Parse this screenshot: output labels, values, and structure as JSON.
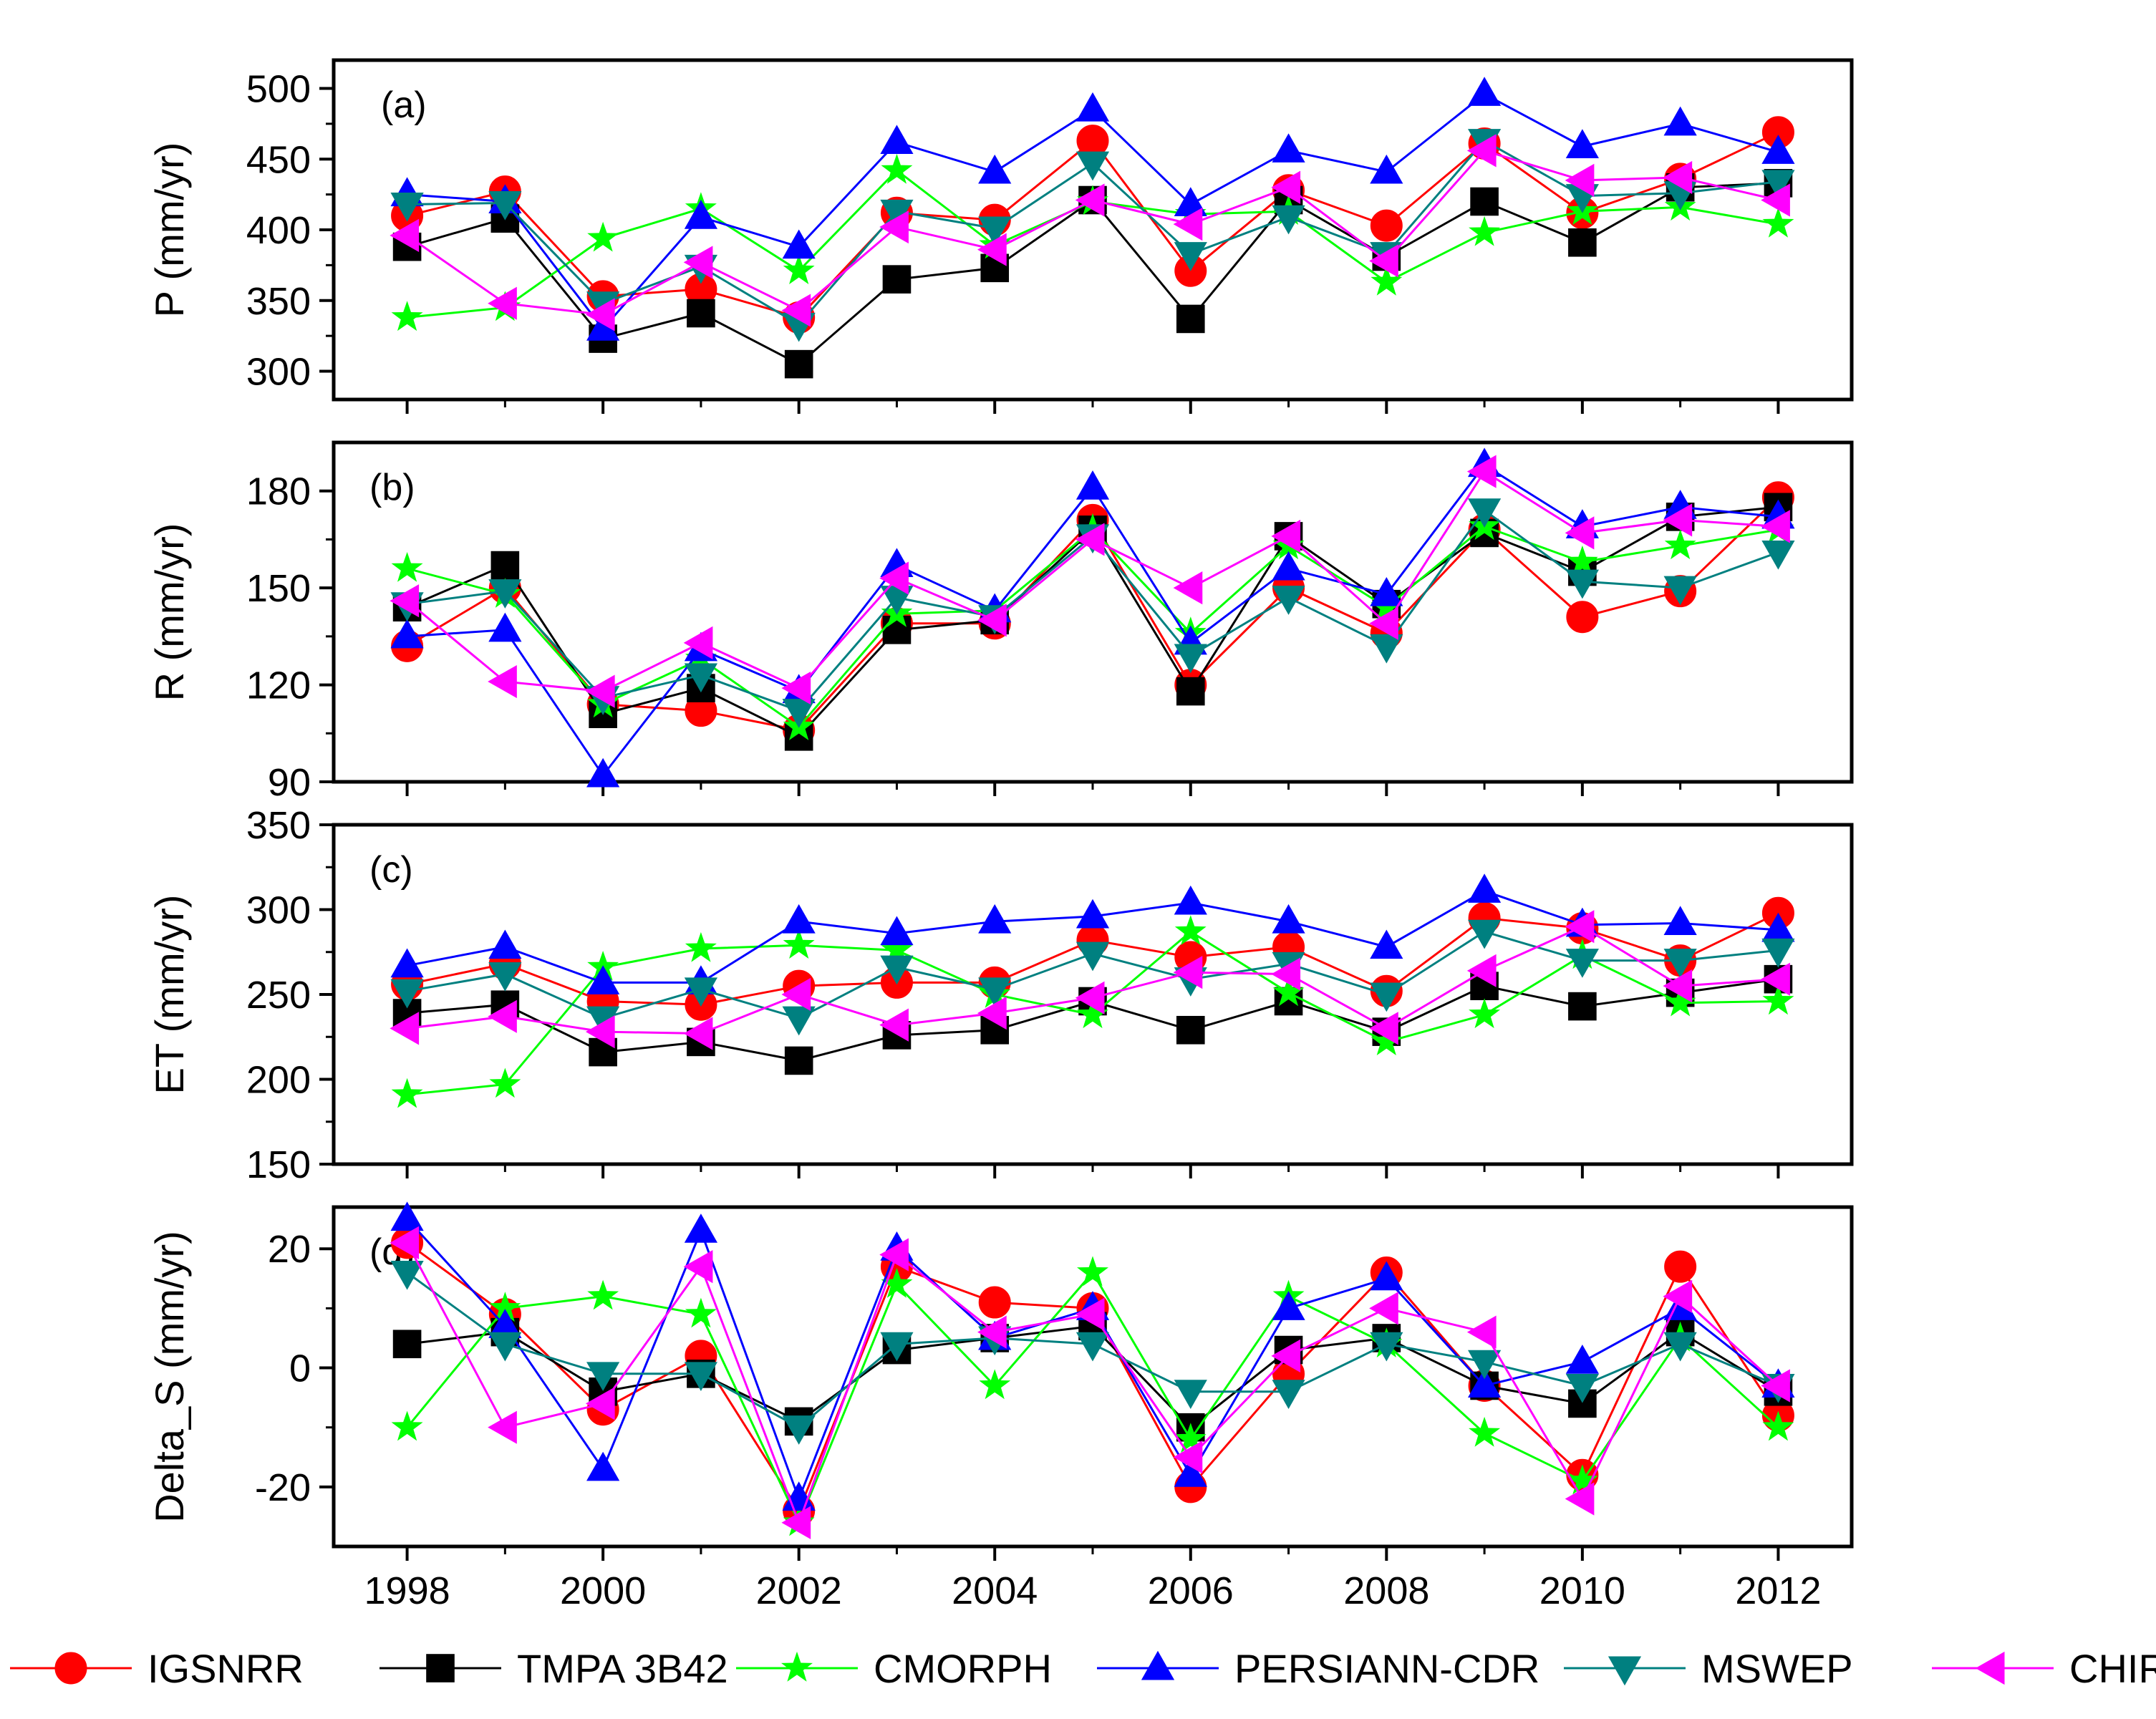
{
  "chart_data": {
    "type": "line",
    "x": [
      1998,
      1999,
      2000,
      2001,
      2002,
      2003,
      2004,
      2005,
      2006,
      2007,
      2008,
      2009,
      2010,
      2011,
      2012
    ],
    "x_ticks": [
      1998,
      2000,
      2002,
      2004,
      2006,
      2008,
      2010,
      2012
    ],
    "x_tick_labels": [
      "1998",
      "2000",
      "2002",
      "2004",
      "2006",
      "2008",
      "2010",
      "2012"
    ],
    "legend": [
      {
        "name": "IGSNRR",
        "color": "#ff0000",
        "marker": "circle"
      },
      {
        "name": "TMPA 3B42",
        "color": "#000000",
        "marker": "square"
      },
      {
        "name": "CMORPH",
        "color": "#00ff00",
        "marker": "star"
      },
      {
        "name": "PERSIANN-CDR",
        "color": "#0000ff",
        "marker": "triangle-up"
      },
      {
        "name": "MSWEP",
        "color": "#008080",
        "marker": "triangle-down"
      },
      {
        "name": "CHIRPS",
        "color": "#ff00ff",
        "marker": "triangle-left"
      }
    ],
    "panels": [
      {
        "label": "(a)",
        "ylabel": "P (mm/yr)",
        "ylim": [
          280,
          520
        ],
        "yticks": [
          300,
          350,
          400,
          450,
          500
        ],
        "ytick_labels": [
          "300",
          "350",
          "400",
          "450",
          "500"
        ],
        "series": {
          "IGSNRR": [
            410,
            427,
            353,
            358,
            338,
            412,
            407,
            463,
            371,
            428,
            403,
            461,
            412,
            436,
            469
          ],
          "TMPA 3B42": [
            388,
            408,
            323,
            341,
            305,
            365,
            373,
            421,
            337,
            421,
            381,
            420,
            391,
            430,
            433
          ],
          "CMORPH": [
            338,
            345,
            394,
            415,
            371,
            442,
            389,
            420,
            411,
            413,
            363,
            398,
            413,
            416,
            404
          ],
          "PERSIANN-CDR": [
            425,
            420,
            330,
            409,
            388,
            462,
            441,
            485,
            418,
            456,
            441,
            496,
            459,
            475,
            455
          ],
          "MSWEP": [
            418,
            419,
            348,
            374,
            333,
            413,
            401,
            447,
            383,
            409,
            383,
            463,
            424,
            426,
            434
          ],
          "CHIRPS": [
            396,
            348,
            340,
            377,
            343,
            402,
            386,
            421,
            404,
            430,
            378,
            456,
            435,
            437,
            421
          ]
        }
      },
      {
        "label": "(b)",
        "ylabel": "R (mm/yr)",
        "ylim": [
          90,
          195
        ],
        "yticks": [
          90,
          120,
          150,
          180
        ],
        "ytick_labels": [
          "90",
          "120",
          "150",
          "180"
        ],
        "series": {
          "IGSNRR": [
            132,
            150,
            114,
            112,
            106,
            139,
            139,
            171,
            120,
            150,
            136,
            168,
            141,
            149,
            178
          ],
          "TMPA 3B42": [
            144,
            157,
            111,
            119,
            104,
            137,
            140,
            168,
            118,
            166,
            145,
            167,
            155,
            172,
            175
          ],
          "CMORPH": [
            156,
            148,
            114,
            128,
            107,
            142,
            143,
            168,
            136,
            163,
            144,
            169,
            158,
            163,
            168
          ],
          "PERSIANN-CDR": [
            135,
            137,
            92,
            131,
            118,
            157,
            143,
            181,
            133,
            156,
            148,
            188,
            169,
            175,
            172
          ],
          "MSWEP": [
            145,
            149,
            116,
            123,
            112,
            147,
            141,
            166,
            129,
            147,
            132,
            174,
            152,
            150,
            161
          ],
          "CHIRPS": [
            146,
            121,
            118,
            133,
            119,
            153,
            140,
            165,
            150,
            166,
            139,
            186,
            167,
            171,
            169
          ]
        }
      },
      {
        "label": "(c)",
        "ylabel": "ET (mm/yr)",
        "ylim": [
          150,
          350
        ],
        "yticks": [
          150,
          200,
          250,
          300,
          350
        ],
        "ytick_labels": [
          "150",
          "200",
          "250",
          "300",
          "350"
        ],
        "series": {
          "IGSNRR": [
            256,
            268,
            246,
            244,
            255,
            257,
            257,
            282,
            272,
            278,
            252,
            295,
            289,
            270,
            298
          ],
          "TMPA 3B42": [
            239,
            244,
            216,
            222,
            211,
            226,
            229,
            246,
            229,
            246,
            228,
            255,
            243,
            251,
            259
          ],
          "CMORPH": [
            191,
            197,
            266,
            277,
            279,
            276,
            250,
            238,
            287,
            251,
            222,
            238,
            273,
            245,
            246
          ],
          "PERSIANN-CDR": [
            267,
            278,
            257,
            257,
            293,
            286,
            293,
            296,
            304,
            293,
            278,
            311,
            291,
            292,
            288
          ],
          "MSWEP": [
            252,
            262,
            236,
            253,
            236,
            266,
            253,
            274,
            259,
            268,
            250,
            287,
            270,
            270,
            276
          ],
          "CHIRPS": [
            230,
            237,
            228,
            227,
            250,
            232,
            239,
            248,
            263,
            262,
            230,
            264,
            290,
            255,
            259
          ]
        }
      },
      {
        "label": "(d)",
        "ylabel": "Delta_S (mm/yr)",
        "ylim": [
          -30,
          27
        ],
        "yticks": [
          -20,
          0,
          20
        ],
        "ytick_labels": [
          "-20",
          "0",
          "20"
        ],
        "series": {
          "IGSNRR": [
            21,
            9,
            -7,
            2,
            -24,
            17,
            11,
            10,
            -20,
            -1,
            16,
            -3,
            -18,
            17,
            -8
          ],
          "TMPA 3B42": [
            4,
            6,
            -4,
            -1,
            -9,
            3,
            5,
            7,
            -10,
            3,
            5,
            -3,
            -6,
            6,
            -4
          ],
          "CMORPH": [
            -10,
            10,
            12,
            9,
            -26,
            14,
            -3,
            16,
            -12,
            12,
            4,
            -11,
            -19,
            5,
            -10
          ],
          "PERSIANN-CDR": [
            25,
            7,
            -17,
            23,
            -22,
            20,
            5,
            10,
            -18,
            10,
            15,
            -3,
            1,
            10,
            -3
          ],
          "MSWEP": [
            16,
            4,
            -1,
            -1,
            -10,
            4,
            5,
            4,
            -4,
            -4,
            4,
            1,
            -3,
            4,
            -3
          ],
          "CHIRPS": [
            21,
            -10,
            -6,
            17,
            -26,
            19,
            6,
            9,
            -15,
            2,
            10,
            6,
            -22,
            12,
            -3
          ]
        }
      }
    ]
  }
}
